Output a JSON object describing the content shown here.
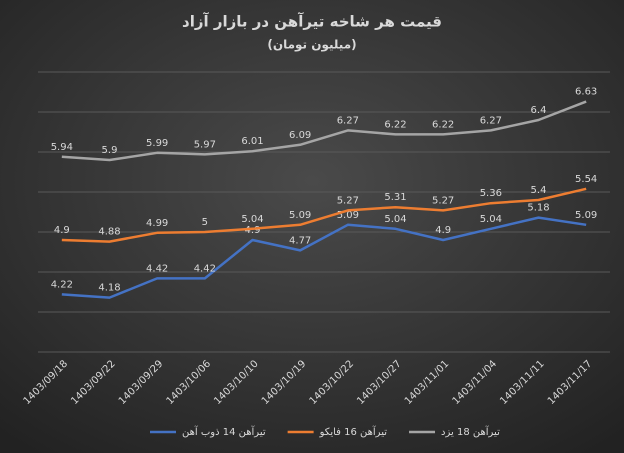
{
  "chart_data": {
    "type": "line",
    "title": "قیمت هر شاخه تیرآهن در بازار آزاد",
    "subtitle": "(میلیون تومان)",
    "categories": [
      "1403/09/18",
      "1403/09/22",
      "1403/09/29",
      "1403/10/06",
      "1403/10/10",
      "1403/10/19",
      "1403/10/22",
      "1403/10/27",
      "1403/11/01",
      "1403/11/04",
      "1403/11/11",
      "1403/11/17"
    ],
    "series": [
      {
        "name": "تیرآهن 14 ذوب آهن",
        "color": "#4472c4",
        "values": [
          4.22,
          4.18,
          4.42,
          4.42,
          4.9,
          4.77,
          5.09,
          5.04,
          4.9,
          5.04,
          5.18,
          5.09
        ]
      },
      {
        "name": "تیرآهن 16 فایکو",
        "color": "#ed7d31",
        "values": [
          4.9,
          4.88,
          4.99,
          5,
          5.04,
          5.09,
          5.27,
          5.31,
          5.27,
          5.36,
          5.4,
          5.54
        ]
      },
      {
        "name": "تیرآهن 18 یزد",
        "color": "#a5a5a5",
        "values": [
          5.94,
          5.9,
          5.99,
          5.97,
          6.01,
          6.09,
          6.27,
          6.22,
          6.22,
          6.27,
          6.4,
          6.63
        ]
      }
    ],
    "ylim": [
      3.5,
      7
    ],
    "yticks": [
      3.5,
      4,
      4.5,
      5,
      5.5,
      6,
      6.5,
      7
    ],
    "ytick_labels": false,
    "grid": true,
    "legend": "bottom",
    "data_labels": true
  }
}
